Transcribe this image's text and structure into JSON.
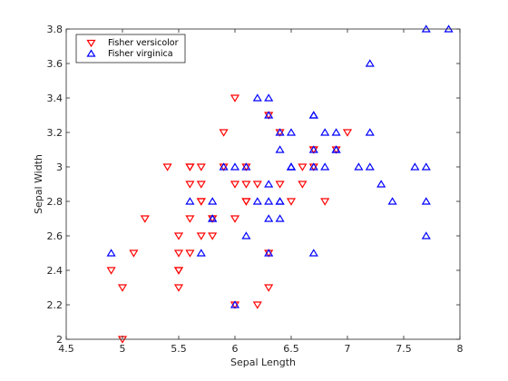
{
  "chart_data": {
    "type": "scatter",
    "title": "",
    "xlabel": "Sepal Length",
    "ylabel": "Sepal Width",
    "xlim": [
      4.5,
      8
    ],
    "ylim": [
      2,
      3.8
    ],
    "xticks": [
      "4.5",
      "5",
      "5.5",
      "6",
      "6.5",
      "7",
      "7.5",
      "8"
    ],
    "yticks": [
      "2",
      "2.2",
      "2.4",
      "2.6",
      "2.8",
      "3",
      "3.2",
      "3.4",
      "3.6",
      "3.8"
    ],
    "legend_position": "top-left",
    "grid": false,
    "series": [
      {
        "name": "Fisher versicolor",
        "marker": "triangle-down",
        "color": "#ff0000",
        "points": [
          [
            7.0,
            3.2
          ],
          [
            6.4,
            3.2
          ],
          [
            6.9,
            3.1
          ],
          [
            5.5,
            2.3
          ],
          [
            6.5,
            2.8
          ],
          [
            5.7,
            2.8
          ],
          [
            6.3,
            3.3
          ],
          [
            4.9,
            2.4
          ],
          [
            6.6,
            2.9
          ],
          [
            5.2,
            2.7
          ],
          [
            5.0,
            2.0
          ],
          [
            5.9,
            3.0
          ],
          [
            6.0,
            2.2
          ],
          [
            6.1,
            2.9
          ],
          [
            5.6,
            2.9
          ],
          [
            6.7,
            3.1
          ],
          [
            5.6,
            3.0
          ],
          [
            5.8,
            2.7
          ],
          [
            6.2,
            2.2
          ],
          [
            5.6,
            2.5
          ],
          [
            5.9,
            3.2
          ],
          [
            6.1,
            2.8
          ],
          [
            6.3,
            2.5
          ],
          [
            6.1,
            2.8
          ],
          [
            6.4,
            2.9
          ],
          [
            6.6,
            3.0
          ],
          [
            6.8,
            2.8
          ],
          [
            6.7,
            3.0
          ],
          [
            6.0,
            2.9
          ],
          [
            5.7,
            2.6
          ],
          [
            5.5,
            2.4
          ],
          [
            5.5,
            2.4
          ],
          [
            5.8,
            2.7
          ],
          [
            6.0,
            2.7
          ],
          [
            5.4,
            3.0
          ],
          [
            6.0,
            3.4
          ],
          [
            6.7,
            3.1
          ],
          [
            6.3,
            2.3
          ],
          [
            5.6,
            3.0
          ],
          [
            5.5,
            2.5
          ],
          [
            5.5,
            2.6
          ],
          [
            6.1,
            3.0
          ],
          [
            5.8,
            2.6
          ],
          [
            5.0,
            2.3
          ],
          [
            5.6,
            2.7
          ],
          [
            5.7,
            3.0
          ],
          [
            5.7,
            2.9
          ],
          [
            6.2,
            2.9
          ],
          [
            5.1,
            2.5
          ],
          [
            5.7,
            2.8
          ]
        ]
      },
      {
        "name": "Fisher virginica",
        "marker": "triangle-up",
        "color": "#0000ff",
        "points": [
          [
            6.3,
            3.3
          ],
          [
            5.8,
            2.7
          ],
          [
            7.1,
            3.0
          ],
          [
            6.3,
            2.9
          ],
          [
            6.5,
            3.0
          ],
          [
            7.6,
            3.0
          ],
          [
            4.9,
            2.5
          ],
          [
            7.3,
            2.9
          ],
          [
            6.7,
            2.5
          ],
          [
            7.2,
            3.6
          ],
          [
            6.5,
            3.2
          ],
          [
            6.4,
            2.7
          ],
          [
            6.8,
            3.0
          ],
          [
            5.7,
            2.5
          ],
          [
            5.8,
            2.8
          ],
          [
            6.4,
            3.2
          ],
          [
            6.5,
            3.0
          ],
          [
            7.7,
            3.8
          ],
          [
            7.7,
            2.6
          ],
          [
            6.0,
            2.2
          ],
          [
            6.9,
            3.2
          ],
          [
            5.6,
            2.8
          ],
          [
            7.7,
            2.8
          ],
          [
            6.3,
            2.7
          ],
          [
            6.7,
            3.3
          ],
          [
            7.2,
            3.2
          ],
          [
            6.2,
            2.8
          ],
          [
            6.1,
            3.0
          ],
          [
            6.4,
            2.8
          ],
          [
            7.2,
            3.0
          ],
          [
            7.4,
            2.8
          ],
          [
            7.9,
            3.8
          ],
          [
            6.4,
            2.8
          ],
          [
            6.3,
            2.8
          ],
          [
            6.1,
            2.6
          ],
          [
            7.7,
            3.0
          ],
          [
            6.3,
            3.4
          ],
          [
            6.4,
            3.1
          ],
          [
            6.0,
            3.0
          ],
          [
            6.9,
            3.1
          ],
          [
            6.7,
            3.1
          ],
          [
            6.9,
            3.1
          ],
          [
            5.8,
            2.7
          ],
          [
            6.8,
            3.2
          ],
          [
            6.7,
            3.3
          ],
          [
            6.7,
            3.0
          ],
          [
            6.3,
            2.5
          ],
          [
            6.5,
            3.0
          ],
          [
            6.2,
            3.4
          ],
          [
            5.9,
            3.0
          ]
        ]
      }
    ]
  }
}
